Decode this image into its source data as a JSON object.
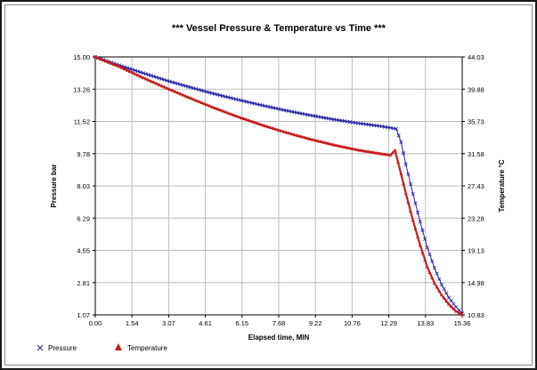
{
  "chart_data": {
    "type": "line",
    "title": "*** Vessel Pressure & Temperature vs  Time ***",
    "xlabel": "Elapsed time, MIN",
    "ylabel_left": "Pressure bar",
    "ylabel_right": "Temperature  °C",
    "xlim": [
      0.0,
      15.36
    ],
    "ylim_left": [
      1.07,
      15.0
    ],
    "ylim_right": [
      10.83,
      44.03
    ],
    "x_ticks": [
      "0.00",
      "1.54",
      "3.07",
      "4.61",
      "6.15",
      "7.68",
      "9.22",
      "10.76",
      "12.29",
      "13.83",
      "15.36"
    ],
    "y_ticks_left": [
      "1.07",
      "2.81",
      "4.55",
      "6.29",
      "8.03",
      "9.78",
      "11.52",
      "13.26",
      "15.00"
    ],
    "y_ticks_right": [
      "10.83",
      "14.98",
      "19.13",
      "23.28",
      "27.43",
      "31.58",
      "35.73",
      "39.88",
      "44.03"
    ],
    "grid": true,
    "legend_position": "bottom-left",
    "series": [
      {
        "name": "Pressure",
        "axis": "left",
        "color": "#1f1fa0",
        "marker": "x",
        "points": [
          [
            0.0,
            15.0
          ],
          [
            1.0,
            14.55
          ],
          [
            2.0,
            14.13
          ],
          [
            3.0,
            13.72
          ],
          [
            4.0,
            13.35
          ],
          [
            5.0,
            13.0
          ],
          [
            6.0,
            12.68
          ],
          [
            7.0,
            12.38
          ],
          [
            8.0,
            12.1
          ],
          [
            9.0,
            11.85
          ],
          [
            10.0,
            11.62
          ],
          [
            11.0,
            11.42
          ],
          [
            12.0,
            11.25
          ],
          [
            12.6,
            11.12
          ],
          [
            12.8,
            10.4
          ],
          [
            13.0,
            9.2
          ],
          [
            13.3,
            7.6
          ],
          [
            13.6,
            6.1
          ],
          [
            13.9,
            4.7
          ],
          [
            14.2,
            3.6
          ],
          [
            14.5,
            2.7
          ],
          [
            14.8,
            2.0
          ],
          [
            15.1,
            1.5
          ],
          [
            15.36,
            1.15
          ]
        ]
      },
      {
        "name": "Temperature",
        "axis": "right",
        "color": "#c81e1e",
        "marker": "triangle",
        "points": [
          [
            0.0,
            44.03
          ],
          [
            1.0,
            42.8
          ],
          [
            2.0,
            41.35
          ],
          [
            3.0,
            40.0
          ],
          [
            4.0,
            38.7
          ],
          [
            5.0,
            37.45
          ],
          [
            6.0,
            36.3
          ],
          [
            7.0,
            35.25
          ],
          [
            8.0,
            34.3
          ],
          [
            9.0,
            33.45
          ],
          [
            10.0,
            32.7
          ],
          [
            11.0,
            32.05
          ],
          [
            12.0,
            31.55
          ],
          [
            12.35,
            31.4
          ],
          [
            12.55,
            32.0
          ],
          [
            12.8,
            29.0
          ],
          [
            13.0,
            26.5
          ],
          [
            13.3,
            23.0
          ],
          [
            13.6,
            19.8
          ],
          [
            13.9,
            17.0
          ],
          [
            14.2,
            14.9
          ],
          [
            14.5,
            13.4
          ],
          [
            14.8,
            12.2
          ],
          [
            15.1,
            11.3
          ],
          [
            15.36,
            10.9
          ]
        ]
      }
    ]
  }
}
